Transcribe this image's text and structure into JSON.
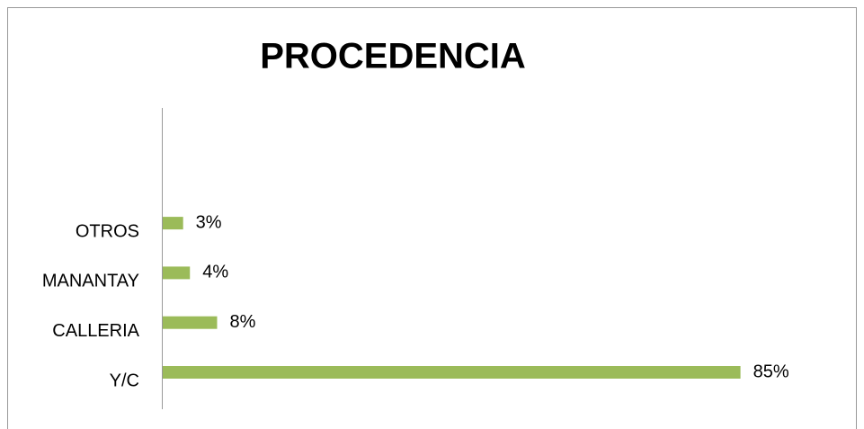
{
  "chart_data": {
    "type": "hbar",
    "title": "PROCEDENCIA",
    "categories": [
      "Y/C",
      "CALLERIA",
      "MANANTAY",
      "OTROS"
    ],
    "values": [
      85,
      8,
      4,
      3
    ],
    "value_labels": [
      "85%",
      "8%",
      "4%",
      "3%"
    ],
    "color": "#9bbb59",
    "xlim": [
      0,
      100
    ]
  }
}
